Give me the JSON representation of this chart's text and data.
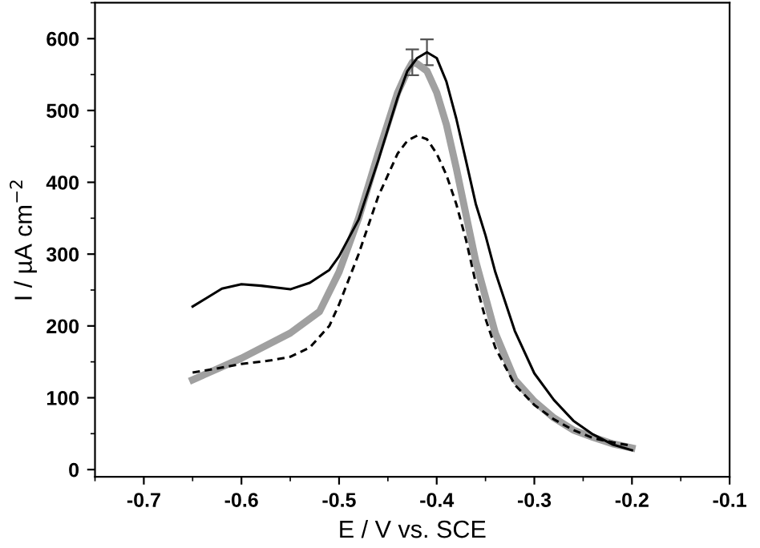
{
  "chart_data": {
    "type": "line",
    "xlabel": "E / V vs. SCE",
    "ylabel": "I / µA cm$^{−2}$",
    "xlim": [
      -0.75,
      -0.1
    ],
    "xticks": [
      -0.7,
      -0.6,
      -0.5,
      -0.4,
      -0.3,
      -0.2,
      -0.1
    ],
    "ylim": [
      -10,
      650
    ],
    "yticks": [
      0,
      100,
      200,
      300,
      400,
      500,
      600
    ],
    "grid": false,
    "legend": false,
    "series": [
      {
        "color": "#000000",
        "line_style": "solid",
        "x": [
          -0.65,
          -0.62,
          -0.6,
          -0.58,
          -0.55,
          -0.53,
          -0.51,
          -0.5,
          -0.48,
          -0.46,
          -0.44,
          -0.43,
          -0.42,
          -0.41,
          -0.4,
          -0.39,
          -0.38,
          -0.37,
          -0.36,
          -0.35,
          -0.34,
          -0.32,
          -0.3,
          -0.28,
          -0.26,
          -0.24,
          -0.22,
          -0.2
        ],
        "values": [
          227,
          252,
          258,
          256,
          251,
          260,
          278,
          297,
          348,
          430,
          518,
          555,
          573,
          581,
          573,
          540,
          489,
          430,
          370,
          326,
          275,
          193,
          134,
          97,
          68,
          49,
          35,
          27
        ],
        "errors": [
          null,
          null,
          null,
          null,
          null,
          null,
          null,
          null,
          null,
          null,
          null,
          null,
          null,
          18,
          null,
          null,
          null,
          null,
          null,
          null,
          null,
          null,
          null,
          null,
          null,
          null,
          null,
          null
        ]
      },
      {
        "color": "#a0a0a0",
        "line_style": "solid",
        "x": [
          -0.65,
          -0.6,
          -0.55,
          -0.52,
          -0.5,
          -0.48,
          -0.46,
          -0.44,
          -0.43,
          -0.425,
          -0.42,
          -0.41,
          -0.4,
          -0.39,
          -0.38,
          -0.37,
          -0.36,
          -0.35,
          -0.34,
          -0.32,
          -0.3,
          -0.28,
          -0.26,
          -0.24,
          -0.22,
          -0.2
        ],
        "values": [
          125,
          155,
          190,
          220,
          275,
          350,
          440,
          525,
          555,
          567,
          565,
          555,
          525,
          480,
          420,
          355,
          290,
          240,
          190,
          125,
          95,
          72,
          55,
          45,
          36,
          30
        ],
        "errors": [
          null,
          null,
          null,
          null,
          null,
          null,
          null,
          null,
          null,
          18,
          null,
          null,
          null,
          null,
          null,
          null,
          null,
          null,
          null,
          null,
          null,
          null,
          null,
          null,
          null,
          null
        ]
      },
      {
        "color": "#000000",
        "line_style": "dashed",
        "x": [
          -0.65,
          -0.62,
          -0.6,
          -0.57,
          -0.55,
          -0.53,
          -0.51,
          -0.5,
          -0.48,
          -0.46,
          -0.44,
          -0.43,
          -0.42,
          -0.41,
          -0.4,
          -0.39,
          -0.38,
          -0.37,
          -0.36,
          -0.35,
          -0.34,
          -0.32,
          -0.3,
          -0.28,
          -0.26,
          -0.24,
          -0.22,
          -0.2
        ],
        "values": [
          135,
          142,
          147,
          152,
          157,
          170,
          200,
          230,
          300,
          380,
          440,
          458,
          465,
          460,
          440,
          410,
          370,
          320,
          260,
          210,
          170,
          118,
          90,
          70,
          55,
          44,
          38,
          33
        ]
      }
    ]
  }
}
